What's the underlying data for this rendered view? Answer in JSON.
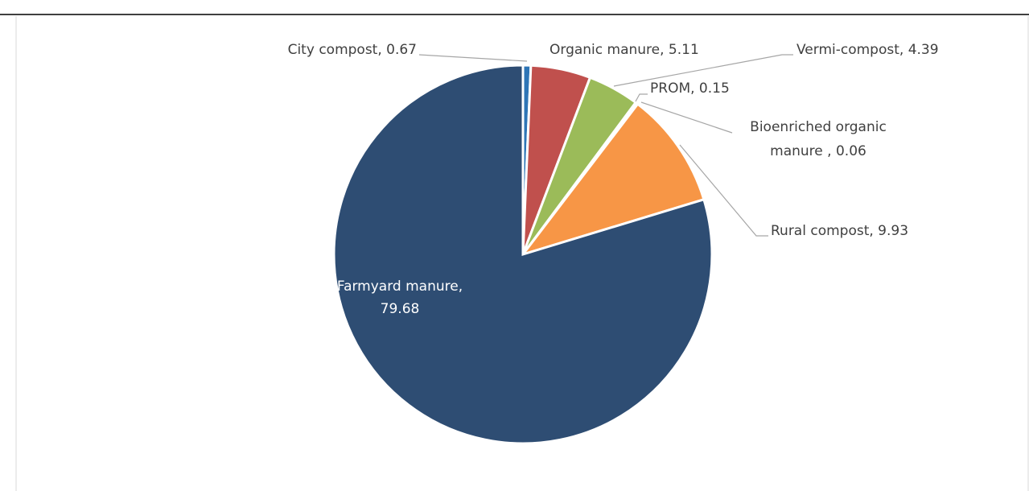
{
  "chart_data": {
    "type": "pie",
    "categories": [
      "City compost",
      "Organic manure",
      "Vermi-compost",
      "PROM",
      "Bioenriched organic manure ",
      "Rural compost",
      "Farmyard manure"
    ],
    "values": [
      0.67,
      5.11,
      4.39,
      0.15,
      0.06,
      9.93,
      79.68
    ],
    "value_labels": [
      "City compost, 0.67",
      "Organic manure, 5.11",
      "Vermi-compost, 4.39",
      "PROM, 0.15",
      "Bioenriched organic manure , 0.06",
      "Rural compost, 9.93",
      "Farmyard manure, 79.68"
    ],
    "colors": [
      "#2e75b6",
      "#c0504d",
      "#9bbb59",
      "#8064a2",
      "#4bacc6",
      "#f79646",
      "#2e4d73"
    ]
  }
}
